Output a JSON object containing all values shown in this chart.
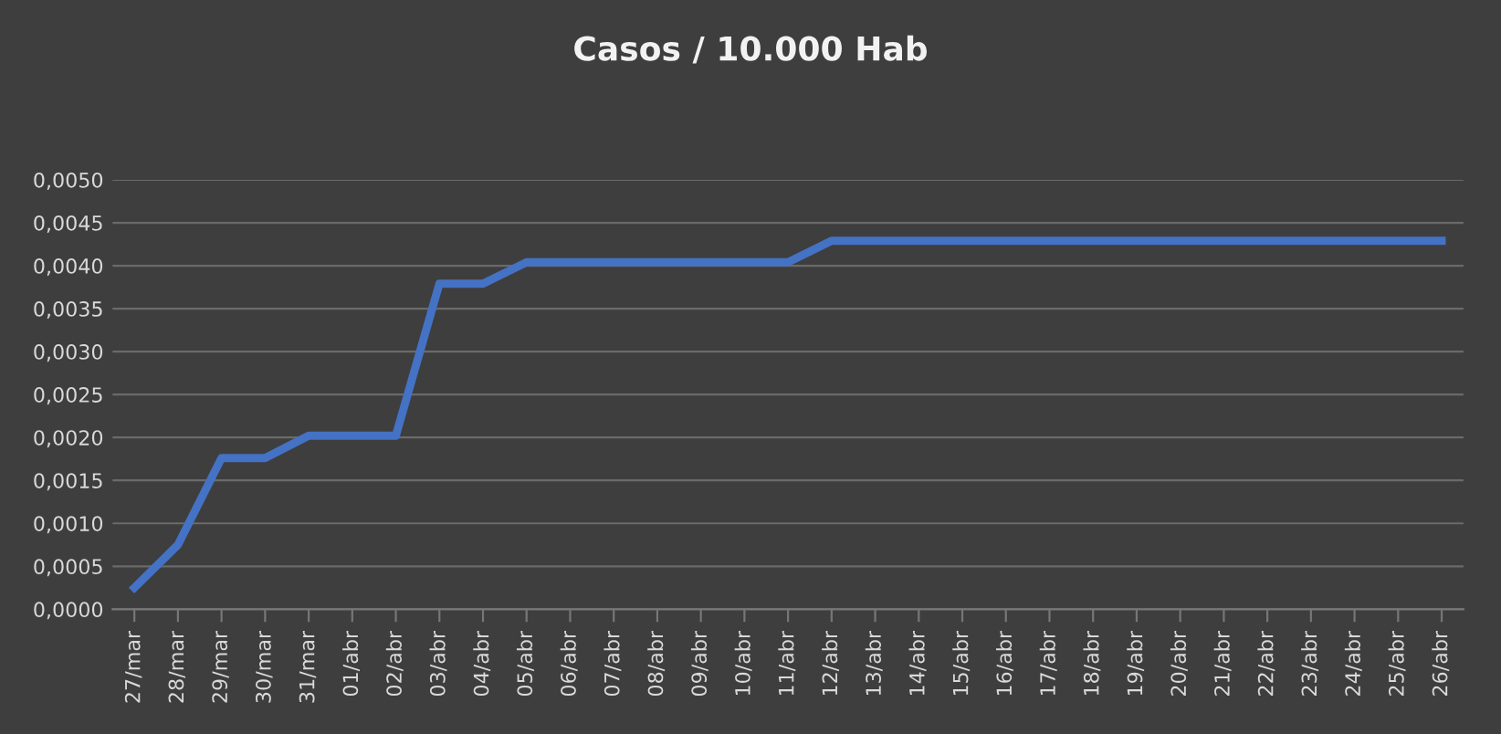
{
  "chart_data": {
    "type": "line",
    "title": "Casos / 10.000 Hab",
    "categories": [
      "27/mar",
      "28/mar",
      "29/mar",
      "30/mar",
      "31/mar",
      "01/abr",
      "02/abr",
      "03/abr",
      "04/abr",
      "05/abr",
      "06/abr",
      "07/abr",
      "08/abr",
      "09/abr",
      "10/abr",
      "11/abr",
      "12/abr",
      "13/abr",
      "14/abr",
      "15/abr",
      "16/abr",
      "17/abr",
      "18/abr",
      "19/abr",
      "20/abr",
      "21/abr",
      "22/abr",
      "23/abr",
      "24/abr",
      "25/abr",
      "26/abr"
    ],
    "series": [
      {
        "color": "#4472c4",
        "values": [
          0.00025,
          0.00075,
          0.00176,
          0.00176,
          0.00202,
          0.00202,
          0.00202,
          0.00379,
          0.00379,
          0.00404,
          0.00404,
          0.00404,
          0.00404,
          0.00404,
          0.00404,
          0.00404,
          0.00429,
          0.00429,
          0.00429,
          0.00429,
          0.00429,
          0.00429,
          0.00429,
          0.00429,
          0.00429,
          0.00429,
          0.00429,
          0.00429,
          0.00429,
          0.00429,
          0.00429
        ]
      }
    ],
    "ylim": [
      0,
      0.005
    ],
    "yticks": [
      {
        "value": 0,
        "label": "0,0000"
      },
      {
        "value": 0.0005,
        "label": "0,0005"
      },
      {
        "value": 0.001,
        "label": "0,0010"
      },
      {
        "value": 0.0015,
        "label": "0,0015"
      },
      {
        "value": 0.002,
        "label": "0,0020"
      },
      {
        "value": 0.0025,
        "label": "0,0025"
      },
      {
        "value": 0.003,
        "label": "0,0030"
      },
      {
        "value": 0.0035,
        "label": "0,0035"
      },
      {
        "value": 0.004,
        "label": "0,0040"
      },
      {
        "value": 0.0045,
        "label": "0,0045"
      },
      {
        "value": 0.005,
        "label": "0,0050"
      }
    ],
    "grid": "y",
    "legend": false,
    "marker": "none",
    "line_style": "solid"
  }
}
